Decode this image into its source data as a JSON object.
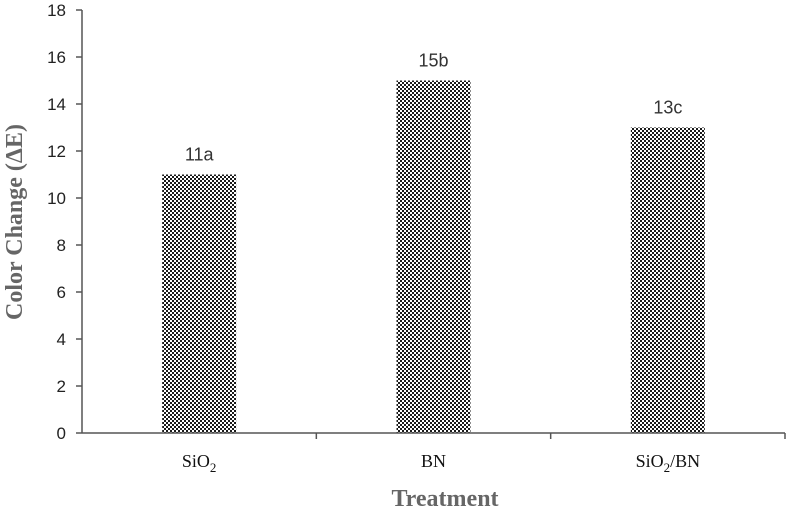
{
  "chart_data": {
    "type": "bar",
    "title": "",
    "xlabel": "Treatment",
    "ylabel": "Color Change (ΔE)",
    "categories": [
      {
        "main": "SiO",
        "sub": "2",
        "rest": ""
      },
      {
        "main": "BN",
        "sub": "",
        "rest": ""
      },
      {
        "main": "SiO",
        "sub": "2",
        "rest": "/BN"
      }
    ],
    "values": [
      11,
      15,
      13
    ],
    "data_labels": [
      "11a",
      "15b",
      "13c"
    ],
    "ylim": [
      0,
      18
    ],
    "yticks": [
      0,
      2,
      4,
      6,
      8,
      10,
      12,
      14,
      16,
      18
    ],
    "grid": false,
    "legend": "none",
    "bar_pattern": "black-white checker hatch"
  }
}
